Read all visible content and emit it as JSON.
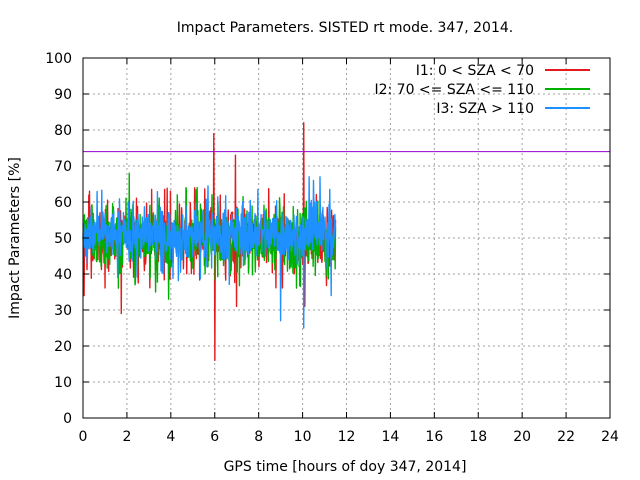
{
  "chart_data": {
    "type": "line",
    "title": "Impact Parameters. SISTED rt mode. 347, 2014.",
    "xlabel": "GPS time [hours of doy 347, 2014]",
    "ylabel": "Impact Parameters [%]",
    "xlim": [
      0,
      24
    ],
    "ylim": [
      0,
      100
    ],
    "x_ticks": [
      0,
      2,
      4,
      6,
      8,
      10,
      12,
      14,
      16,
      18,
      20,
      22,
      24
    ],
    "y_ticks": [
      0,
      10,
      20,
      30,
      40,
      50,
      60,
      70,
      80,
      90,
      100
    ],
    "grid": true,
    "legend_position": "top-right",
    "threshold": {
      "value": 74,
      "color": "#9400d3"
    },
    "series": [
      {
        "name": "I1: 0 < SZA < 70",
        "color": "#e41a1c",
        "x_range": [
          0,
          11.5
        ],
        "center": 50,
        "noise": 4,
        "spikes": [
          {
            "x": 0.05,
            "value": 34
          },
          {
            "x": 0.3,
            "value": 63
          },
          {
            "x": 1.75,
            "value": 29
          },
          {
            "x": 5.95,
            "value": 79
          },
          {
            "x": 6.0,
            "value": 16
          },
          {
            "x": 6.95,
            "value": 73
          },
          {
            "x": 7.0,
            "value": 31
          },
          {
            "x": 10.05,
            "value": 82
          },
          {
            "x": 10.1,
            "value": 31
          }
        ]
      },
      {
        "name": "I2: 70 <= SZA <= 110",
        "color": "#00b000",
        "x_range": [
          0,
          11.5
        ],
        "center": 50,
        "noise": 4,
        "spikes": [
          {
            "x": 2.1,
            "value": 68
          },
          {
            "x": 3.3,
            "value": 35
          },
          {
            "x": 3.9,
            "value": 33
          },
          {
            "x": 4.3,
            "value": 62
          },
          {
            "x": 5.2,
            "value": 64
          }
        ]
      },
      {
        "name": "I3: SZA > 110",
        "color": "#1e90ff",
        "x_range": [
          0,
          11.5
        ],
        "center": 51,
        "noise": 3.5,
        "spikes": [
          {
            "x": 9.0,
            "value": 27
          },
          {
            "x": 10.05,
            "value": 25
          },
          {
            "x": 11.3,
            "value": 34
          },
          {
            "x": 10.3,
            "value": 67
          },
          {
            "x": 10.5,
            "value": 66
          },
          {
            "x": 10.8,
            "value": 67
          }
        ]
      }
    ]
  }
}
